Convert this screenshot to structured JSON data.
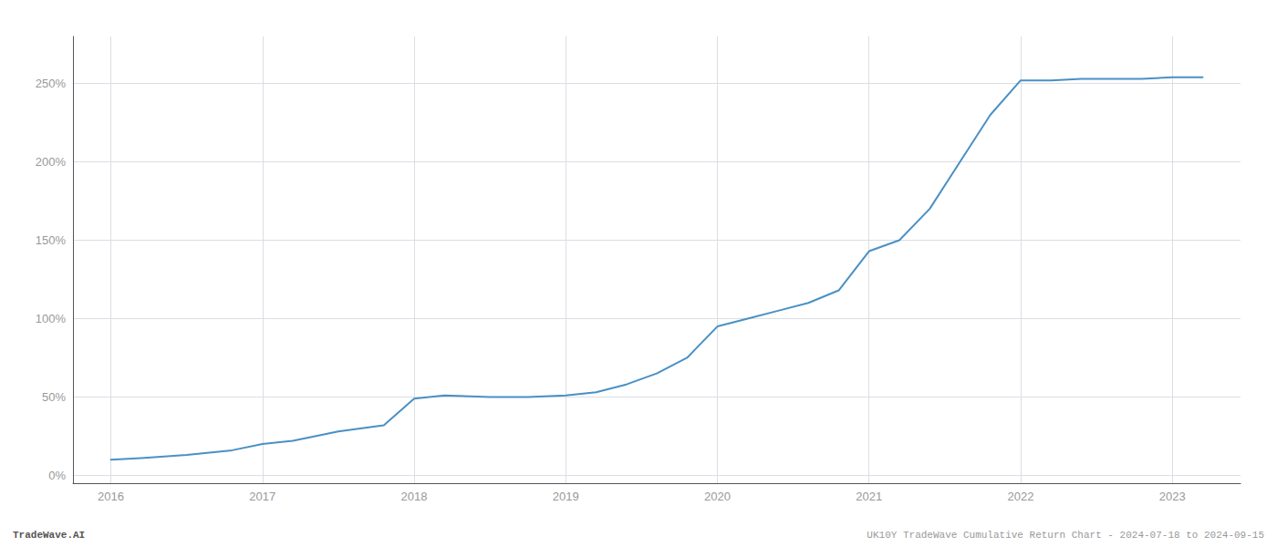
{
  "chart_data": {
    "type": "line",
    "x": [
      2016.0,
      2016.2,
      2016.5,
      2016.8,
      2017.0,
      2017.2,
      2017.5,
      2017.8,
      2018.0,
      2018.2,
      2018.5,
      2018.75,
      2019.0,
      2019.2,
      2019.4,
      2019.6,
      2019.8,
      2020.0,
      2020.2,
      2020.4,
      2020.6,
      2020.8,
      2021.0,
      2021.2,
      2021.4,
      2021.6,
      2021.8,
      2022.0,
      2022.2,
      2022.4,
      2022.6,
      2022.8,
      2023.0,
      2023.2
    ],
    "values": [
      10,
      11,
      13,
      16,
      20,
      22,
      28,
      32,
      49,
      51,
      50,
      50,
      51,
      53,
      58,
      65,
      75,
      95,
      100,
      105,
      110,
      118,
      143,
      150,
      170,
      200,
      230,
      252,
      252,
      253,
      253,
      253,
      254,
      254
    ],
    "color": "#4a90c4",
    "xlim": [
      2015.75,
      2023.45
    ],
    "xticks": [
      2016,
      2017,
      2018,
      2019,
      2020,
      2021,
      2022,
      2023
    ],
    "ylim": [
      -5,
      280
    ],
    "yticks": [
      {
        "value": 0,
        "label": "0%"
      },
      {
        "value": 50,
        "label": "50%"
      },
      {
        "value": 100,
        "label": "100%"
      },
      {
        "value": 150,
        "label": "150%"
      },
      {
        "value": 200,
        "label": "200%"
      },
      {
        "value": 250,
        "label": "250%"
      }
    ],
    "grid": true,
    "annotations": [
      "TradeWave.AI",
      "UK10Y TradeWave Cumulative Return Chart - 2024-07-18 to 2024-09-15"
    ]
  }
}
